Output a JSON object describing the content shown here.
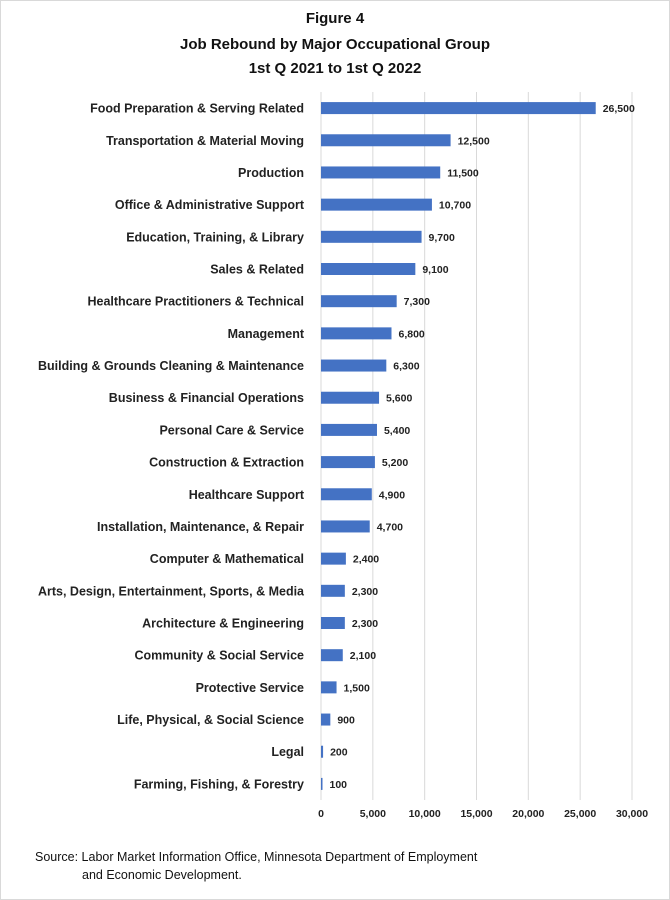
{
  "chart_data": {
    "type": "bar",
    "orientation": "horizontal",
    "title": "Figure 4",
    "subtitle": "Job Rebound by Major Occupational Group",
    "subtitle2": "1st Q 2021 to 1st Q 2022",
    "categories": [
      "Food Preparation & Serving Related",
      "Transportation & Material Moving",
      "Production",
      "Office & Administrative Support",
      "Education, Training, & Library",
      "Sales & Related",
      "Healthcare Practitioners & Technical",
      "Management",
      "Building & Grounds Cleaning & Maintenance",
      "Business & Financial Operations",
      "Personal Care & Service",
      "Construction & Extraction",
      "Healthcare Support",
      "Installation, Maintenance, & Repair",
      "Computer & Mathematical",
      "Arts, Design, Entertainment, Sports, & Media",
      "Architecture & Engineering",
      "Community & Social Service",
      "Protective Service",
      "Life, Physical, & Social Science",
      "Legal",
      "Farming, Fishing, & Forestry"
    ],
    "values": [
      26500,
      12500,
      11500,
      10700,
      9700,
      9100,
      7300,
      6800,
      6300,
      5600,
      5400,
      5200,
      4900,
      4700,
      2400,
      2300,
      2300,
      2100,
      1500,
      900,
      200,
      100
    ],
    "value_labels": [
      "26,500",
      "12,500",
      "11,500",
      "10,700",
      "9,700",
      "9,100",
      "7,300",
      "6,800",
      "6,300",
      "5,600",
      "5,400",
      "5,200",
      "4,900",
      "4,700",
      "2,400",
      "2,300",
      "2,300",
      "2,100",
      "1,500",
      "900",
      "200",
      "100"
    ],
    "xlim": [
      0,
      30000
    ],
    "xticks": [
      0,
      5000,
      10000,
      15000,
      20000,
      25000,
      30000
    ],
    "xtick_labels": [
      "0",
      "5,000",
      "10,000",
      "15,000",
      "20,000",
      "25,000",
      "30,000"
    ],
    "grid": true,
    "bar_color": "#4472c4",
    "grid_color": "#d9d9d9",
    "xlabel": "",
    "ylabel": ""
  },
  "source_line1": "Source: Labor Market Information Office, Minnesota Department of Employment",
  "source_line2": "and Economic Development."
}
